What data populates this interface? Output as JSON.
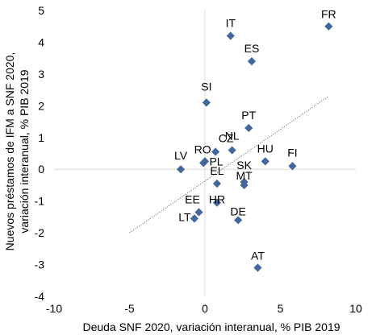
{
  "chart_data": {
    "type": "scatter",
    "xlabel": "Deuda SNF 2020, variación interanual, % PIB 2019",
    "ylabel": "Nuevos préstamos de IFM a SNF 2020, variación interanual, % PIB 2019",
    "xlim": [
      -10,
      10
    ],
    "ylim": [
      -4,
      5
    ],
    "xticks": [
      "-10",
      "-5",
      "0",
      "5",
      "10"
    ],
    "yticks": [
      "-4",
      "-3",
      "-2",
      "-1",
      "0",
      "1",
      "2",
      "3",
      "4",
      "5"
    ],
    "grid": false,
    "legend": "none",
    "marker_color": "#41679c",
    "trendline": {
      "style": "dotted",
      "x": [
        -5,
        8.2
      ],
      "y": [
        -2.0,
        2.3
      ]
    },
    "points": [
      {
        "label": "FR",
        "x": 8.2,
        "y": 4.5
      },
      {
        "label": "IT",
        "x": 1.7,
        "y": 4.2
      },
      {
        "label": "ES",
        "x": 3.1,
        "y": 3.4
      },
      {
        "label": "SI",
        "x": 0.1,
        "y": 2.1
      },
      {
        "label": "PT",
        "x": 2.9,
        "y": 1.3
      },
      {
        "label": "NL",
        "x": 1.8,
        "y": 0.6
      },
      {
        "label": "CZ",
        "x": 0.7,
        "y": 0.55
      },
      {
        "label": "RO",
        "x": -0.1,
        "y": 0.2
      },
      {
        "label": "HU",
        "x": 4.0,
        "y": 0.25
      },
      {
        "label": "FI",
        "x": 5.8,
        "y": 0.1
      },
      {
        "label": "LV",
        "x": -1.6,
        "y": 0.0
      },
      {
        "label": "PL",
        "x": 0.0,
        "y": 0.25
      },
      {
        "label": "SK",
        "x": 2.6,
        "y": -0.4
      },
      {
        "label": "MT",
        "x": 2.6,
        "y": -0.5
      },
      {
        "label": "EL",
        "x": 0.8,
        "y": -0.45
      },
      {
        "label": "EE",
        "x": -0.4,
        "y": -1.35
      },
      {
        "label": "HR",
        "x": 0.8,
        "y": -1.05
      },
      {
        "label": "LT",
        "x": -0.7,
        "y": -1.55
      },
      {
        "label": "DE",
        "x": 2.2,
        "y": -1.6
      },
      {
        "label": "AT",
        "x": 3.5,
        "y": -3.1
      }
    ]
  }
}
